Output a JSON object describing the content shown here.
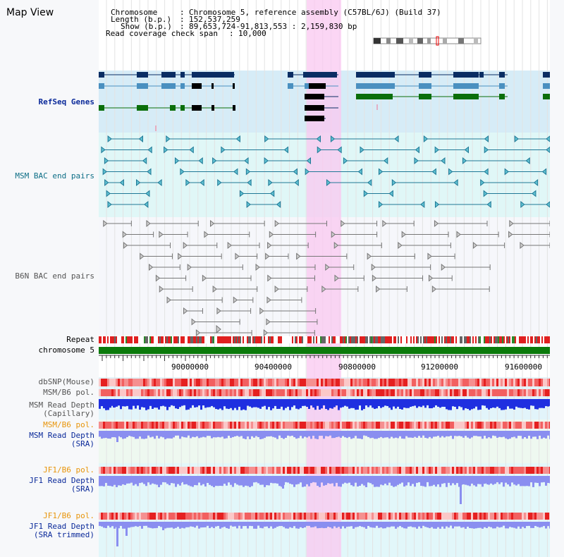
{
  "app": {
    "title": "Map View"
  },
  "info": {
    "chromosome_label": "Chromosome",
    "chromosome_value": "Chromosome 5, reference assembly (C57BL/6J) (Build 37)",
    "length_label": "Length (b.p.)",
    "length_value": "152,537,259",
    "show_label": "Show (b.p.)",
    "show_value": "89,653,724-91,813,553 : 2,159,830 bp",
    "coverage_label": "Read coverage check span",
    "coverage_value": "10,000"
  },
  "tracks": {
    "refseq": "RefSeq Genes",
    "msm_bac": "MSM BAC end pairs",
    "b6n_bac": "B6N BAC end pairs",
    "repeat": "Repeat",
    "chromosome": "chromosome 5",
    "dbsnp": "dbSNP(Mouse)",
    "msm_b6_pol": "MSM/B6 pol.",
    "msm_depth_cap": "MSM Read Depth\n(Capillary)",
    "msm_b6_pol_sra": "MSM/B6 pol.",
    "msm_depth_sra": "MSM Read Depth\n(SRA)",
    "jf1_b6_pol": "JF1/B6 pol.",
    "jf1_depth_sra": "JF1 Read Depth\n(SRA)",
    "jf1_b6_pol_trim": "JF1/B6 pol.",
    "jf1_depth_trim": "JF1 Read Depth\n(SRA trimmed)"
  },
  "axis": {
    "ticks": [
      "90000000",
      "90400000",
      "90800000",
      "91200000",
      "91600000"
    ]
  },
  "colors": {
    "highlight": "#f9c8f0",
    "refseq_bg": "#d6ecf7",
    "msm_bg": "#e0f7f7",
    "chromosome": "#0b7a0b",
    "depth_blue": "#1f2fe0",
    "depth_light": "#8a8ef0"
  }
}
